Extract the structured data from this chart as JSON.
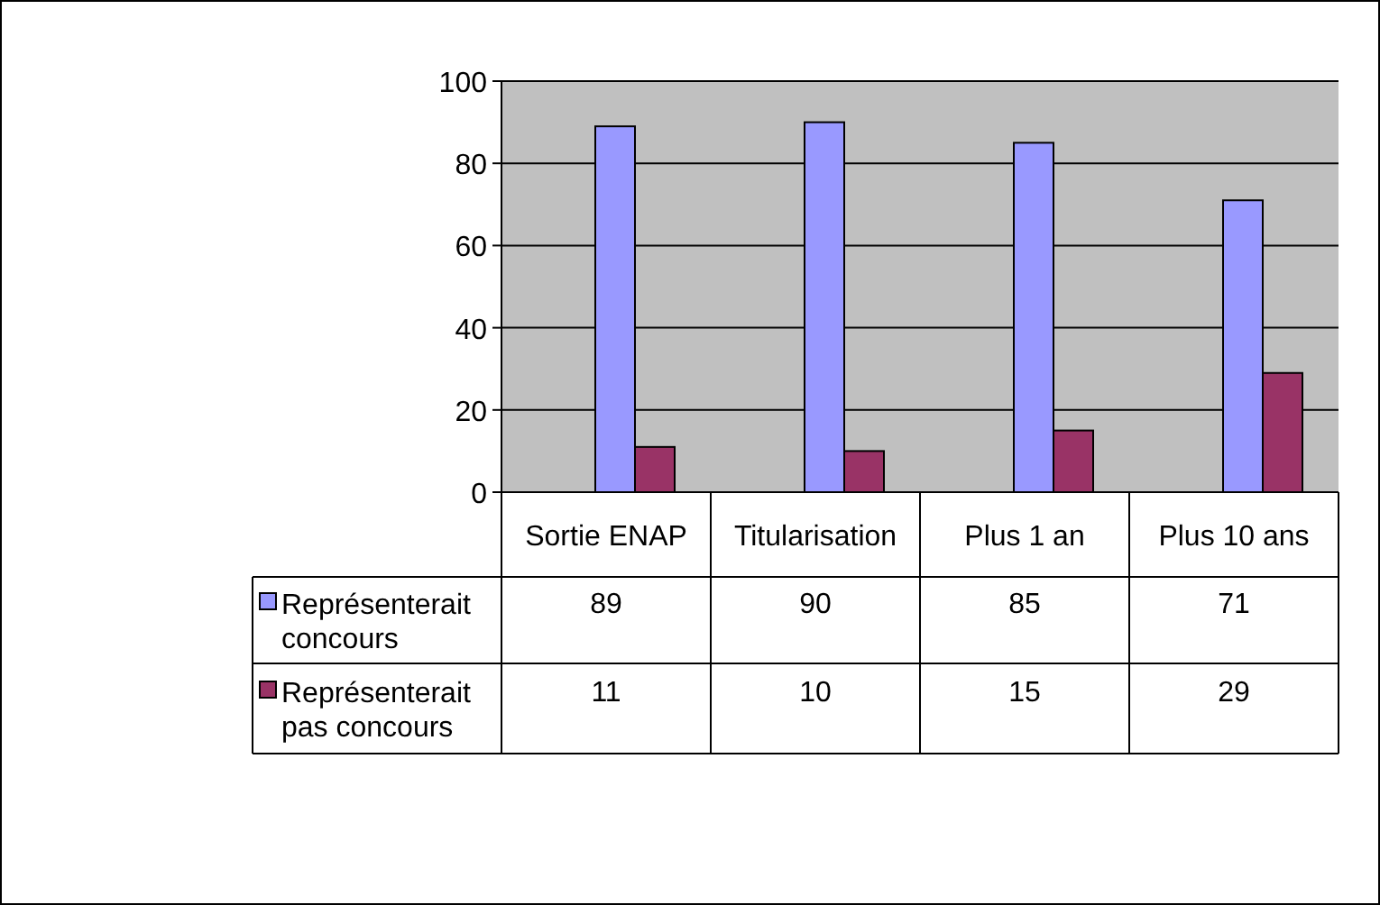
{
  "chart_data": {
    "type": "bar",
    "categories": [
      "Sortie ENAP",
      "Titularisation",
      "Plus 1 an",
      "Plus 10 ans"
    ],
    "series": [
      {
        "name": "Représenterait concours",
        "color": "#9999ff",
        "values": [
          89,
          90,
          85,
          71
        ]
      },
      {
        "name": "Représenterait pas concours",
        "color": "#993366",
        "values": [
          11,
          10,
          15,
          29
        ]
      }
    ],
    "ylim": [
      0,
      100
    ],
    "yticks": [
      0,
      20,
      40,
      60,
      80,
      100
    ],
    "grid": "y",
    "data_labels": true,
    "legend": "bottom left"
  }
}
